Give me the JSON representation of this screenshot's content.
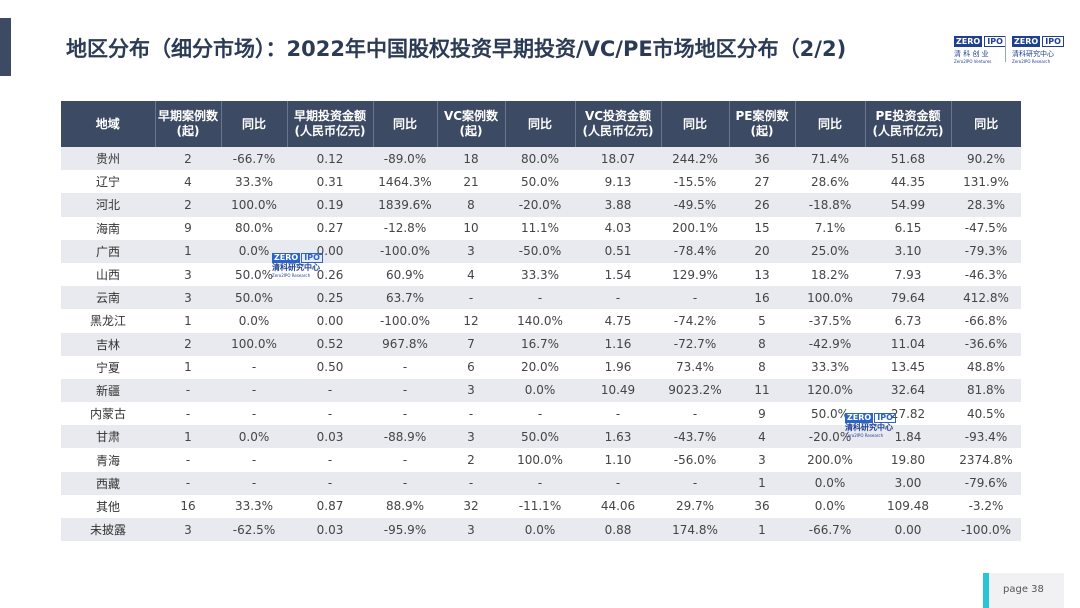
{
  "title": "地区分布（细分市场）：2022年中国股权投资早期投资/VC/PE市场地区分布（2/2)",
  "logo": {
    "zero": "ZERO",
    "ipo": "IPO",
    "left_cn": "清 科 创 业",
    "left_en": "Zero2IPO Ventures",
    "right_cn": "清科研究中心",
    "right_en": "Zero2IPO Research"
  },
  "watermark": {
    "zero": "ZERO",
    "ipo": "IPO",
    "cn": "清科研究中心",
    "en": "Zero2IPO Research"
  },
  "table": {
    "headers": [
      "地域",
      "早期案例数\n(起)",
      "同比",
      "早期投资金额\n(人民币亿元)",
      "同比",
      "VC案例数\n(起)",
      "同比",
      "VC投资金额\n(人民币亿元)",
      "同比",
      "PE案例数\n(起)",
      "同比",
      "PE投资金额\n(人民币亿元)",
      "同比"
    ],
    "rows": [
      [
        "贵州",
        "2",
        "-66.7%",
        "0.12",
        "-89.0%",
        "18",
        "80.0%",
        "18.07",
        "244.2%",
        "36",
        "71.4%",
        "51.68",
        "90.2%"
      ],
      [
        "辽宁",
        "4",
        "33.3%",
        "0.31",
        "1464.3%",
        "21",
        "50.0%",
        "9.13",
        "-15.5%",
        "27",
        "28.6%",
        "44.35",
        "131.9%"
      ],
      [
        "河北",
        "2",
        "100.0%",
        "0.19",
        "1839.6%",
        "8",
        "-20.0%",
        "3.88",
        "-49.5%",
        "26",
        "-18.8%",
        "54.99",
        "28.3%"
      ],
      [
        "海南",
        "9",
        "80.0%",
        "0.27",
        "-12.8%",
        "10",
        "11.1%",
        "4.03",
        "200.1%",
        "15",
        "7.1%",
        "6.15",
        "-47.5%"
      ],
      [
        "广西",
        "1",
        "0.0%",
        "0.00",
        "-100.0%",
        "3",
        "-50.0%",
        "0.51",
        "-78.4%",
        "20",
        "25.0%",
        "3.10",
        "-79.3%"
      ],
      [
        "山西",
        "3",
        "50.0%",
        "0.26",
        "60.9%",
        "4",
        "33.3%",
        "1.54",
        "129.9%",
        "13",
        "18.2%",
        "7.93",
        "-46.3%"
      ],
      [
        "云南",
        "3",
        "50.0%",
        "0.25",
        "63.7%",
        "-",
        "-",
        "-",
        "-",
        "16",
        "100.0%",
        "79.64",
        "412.8%"
      ],
      [
        "黑龙江",
        "1",
        "0.0%",
        "0.00",
        "-100.0%",
        "12",
        "140.0%",
        "4.75",
        "-74.2%",
        "5",
        "-37.5%",
        "6.73",
        "-66.8%"
      ],
      [
        "吉林",
        "2",
        "100.0%",
        "0.52",
        "967.8%",
        "7",
        "16.7%",
        "1.16",
        "-72.7%",
        "8",
        "-42.9%",
        "11.04",
        "-36.6%"
      ],
      [
        "宁夏",
        "1",
        "-",
        "0.50",
        "-",
        "6",
        "20.0%",
        "1.96",
        "73.4%",
        "8",
        "33.3%",
        "13.45",
        "48.8%"
      ],
      [
        "新疆",
        "-",
        "-",
        "-",
        "-",
        "3",
        "0.0%",
        "10.49",
        "9023.2%",
        "11",
        "120.0%",
        "32.64",
        "81.8%"
      ],
      [
        "内蒙古",
        "-",
        "-",
        "-",
        "-",
        "-",
        "-",
        "-",
        "-",
        "9",
        "50.0%",
        "27.82",
        "40.5%"
      ],
      [
        "甘肃",
        "1",
        "0.0%",
        "0.03",
        "-88.9%",
        "3",
        "50.0%",
        "1.63",
        "-43.7%",
        "4",
        "-20.0%",
        "1.84",
        "-93.4%"
      ],
      [
        "青海",
        "-",
        "-",
        "-",
        "-",
        "2",
        "100.0%",
        "1.10",
        "-56.0%",
        "3",
        "200.0%",
        "19.80",
        "2374.8%"
      ],
      [
        "西藏",
        "-",
        "-",
        "-",
        "-",
        "-",
        "-",
        "-",
        "-",
        "1",
        "0.0%",
        "3.00",
        "-79.6%"
      ],
      [
        "其他",
        "16",
        "33.3%",
        "0.87",
        "88.9%",
        "32",
        "-11.1%",
        "44.06",
        "29.7%",
        "36",
        "0.0%",
        "109.48",
        "-3.2%"
      ],
      [
        "未披露",
        "3",
        "-62.5%",
        "0.03",
        "-95.9%",
        "3",
        "0.0%",
        "0.88",
        "174.8%",
        "1",
        "-66.7%",
        "0.00",
        "-100.0%"
      ]
    ]
  },
  "page": "page  38"
}
